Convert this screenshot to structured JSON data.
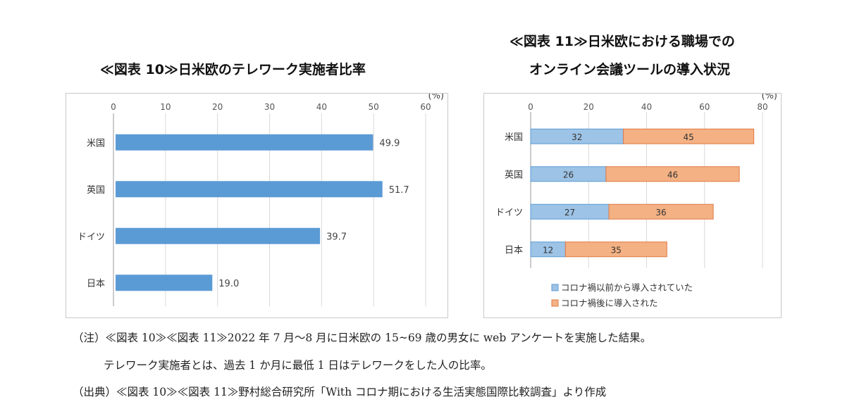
{
  "chart_data": [
    {
      "type": "bar",
      "title": "≪図表 10≫日米欧のテレワーク実施者比率",
      "unit": "(%)",
      "categories": [
        "米国",
        "英国",
        "ドイツ",
        "日本"
      ],
      "values": [
        49.9,
        51.7,
        39.7,
        19.0
      ],
      "value_labels": [
        "49.9",
        "51.7",
        "39.7",
        "19.0"
      ],
      "xlim": [
        0,
        60
      ],
      "ticks": [
        0,
        10,
        20,
        30,
        40,
        50,
        60
      ],
      "colors": {
        "bar": "#5b9bd5"
      },
      "grid": true
    },
    {
      "type": "bar",
      "stacked": true,
      "title_lines": [
        "≪図表 11≫日米欧における職場での",
        "オンライン会議ツールの導入状況"
      ],
      "unit": "(%)",
      "categories": [
        "米国",
        "英国",
        "ドイツ",
        "日本"
      ],
      "series": [
        {
          "name": "コロナ禍以前から導入されていた",
          "values": [
            32,
            26,
            27,
            12
          ],
          "color": "#9dc3e6"
        },
        {
          "name": "コロナ禍後に導入された",
          "values": [
            45,
            46,
            36,
            35
          ],
          "color": "#f4b183"
        }
      ],
      "xlim": [
        0,
        80
      ],
      "ticks": [
        0,
        20,
        40,
        60,
        80
      ],
      "grid": true,
      "legend": "bottom"
    }
  ],
  "notes": {
    "line1": "（注）≪図表 10≫≪図表 11≫2022 年 7 月～8 月に日米欧の 15~69 歳の男女に web アンケートを実施した結果。",
    "line2": "テレワーク実施者とは、過去 1 か月に最低 1 日はテレワークをした人の比率。",
    "line3": "（出典）≪図表 10≫≪図表 11≫野村総合研究所「With コロナ期における生活実態国際比較調査」より作成"
  }
}
